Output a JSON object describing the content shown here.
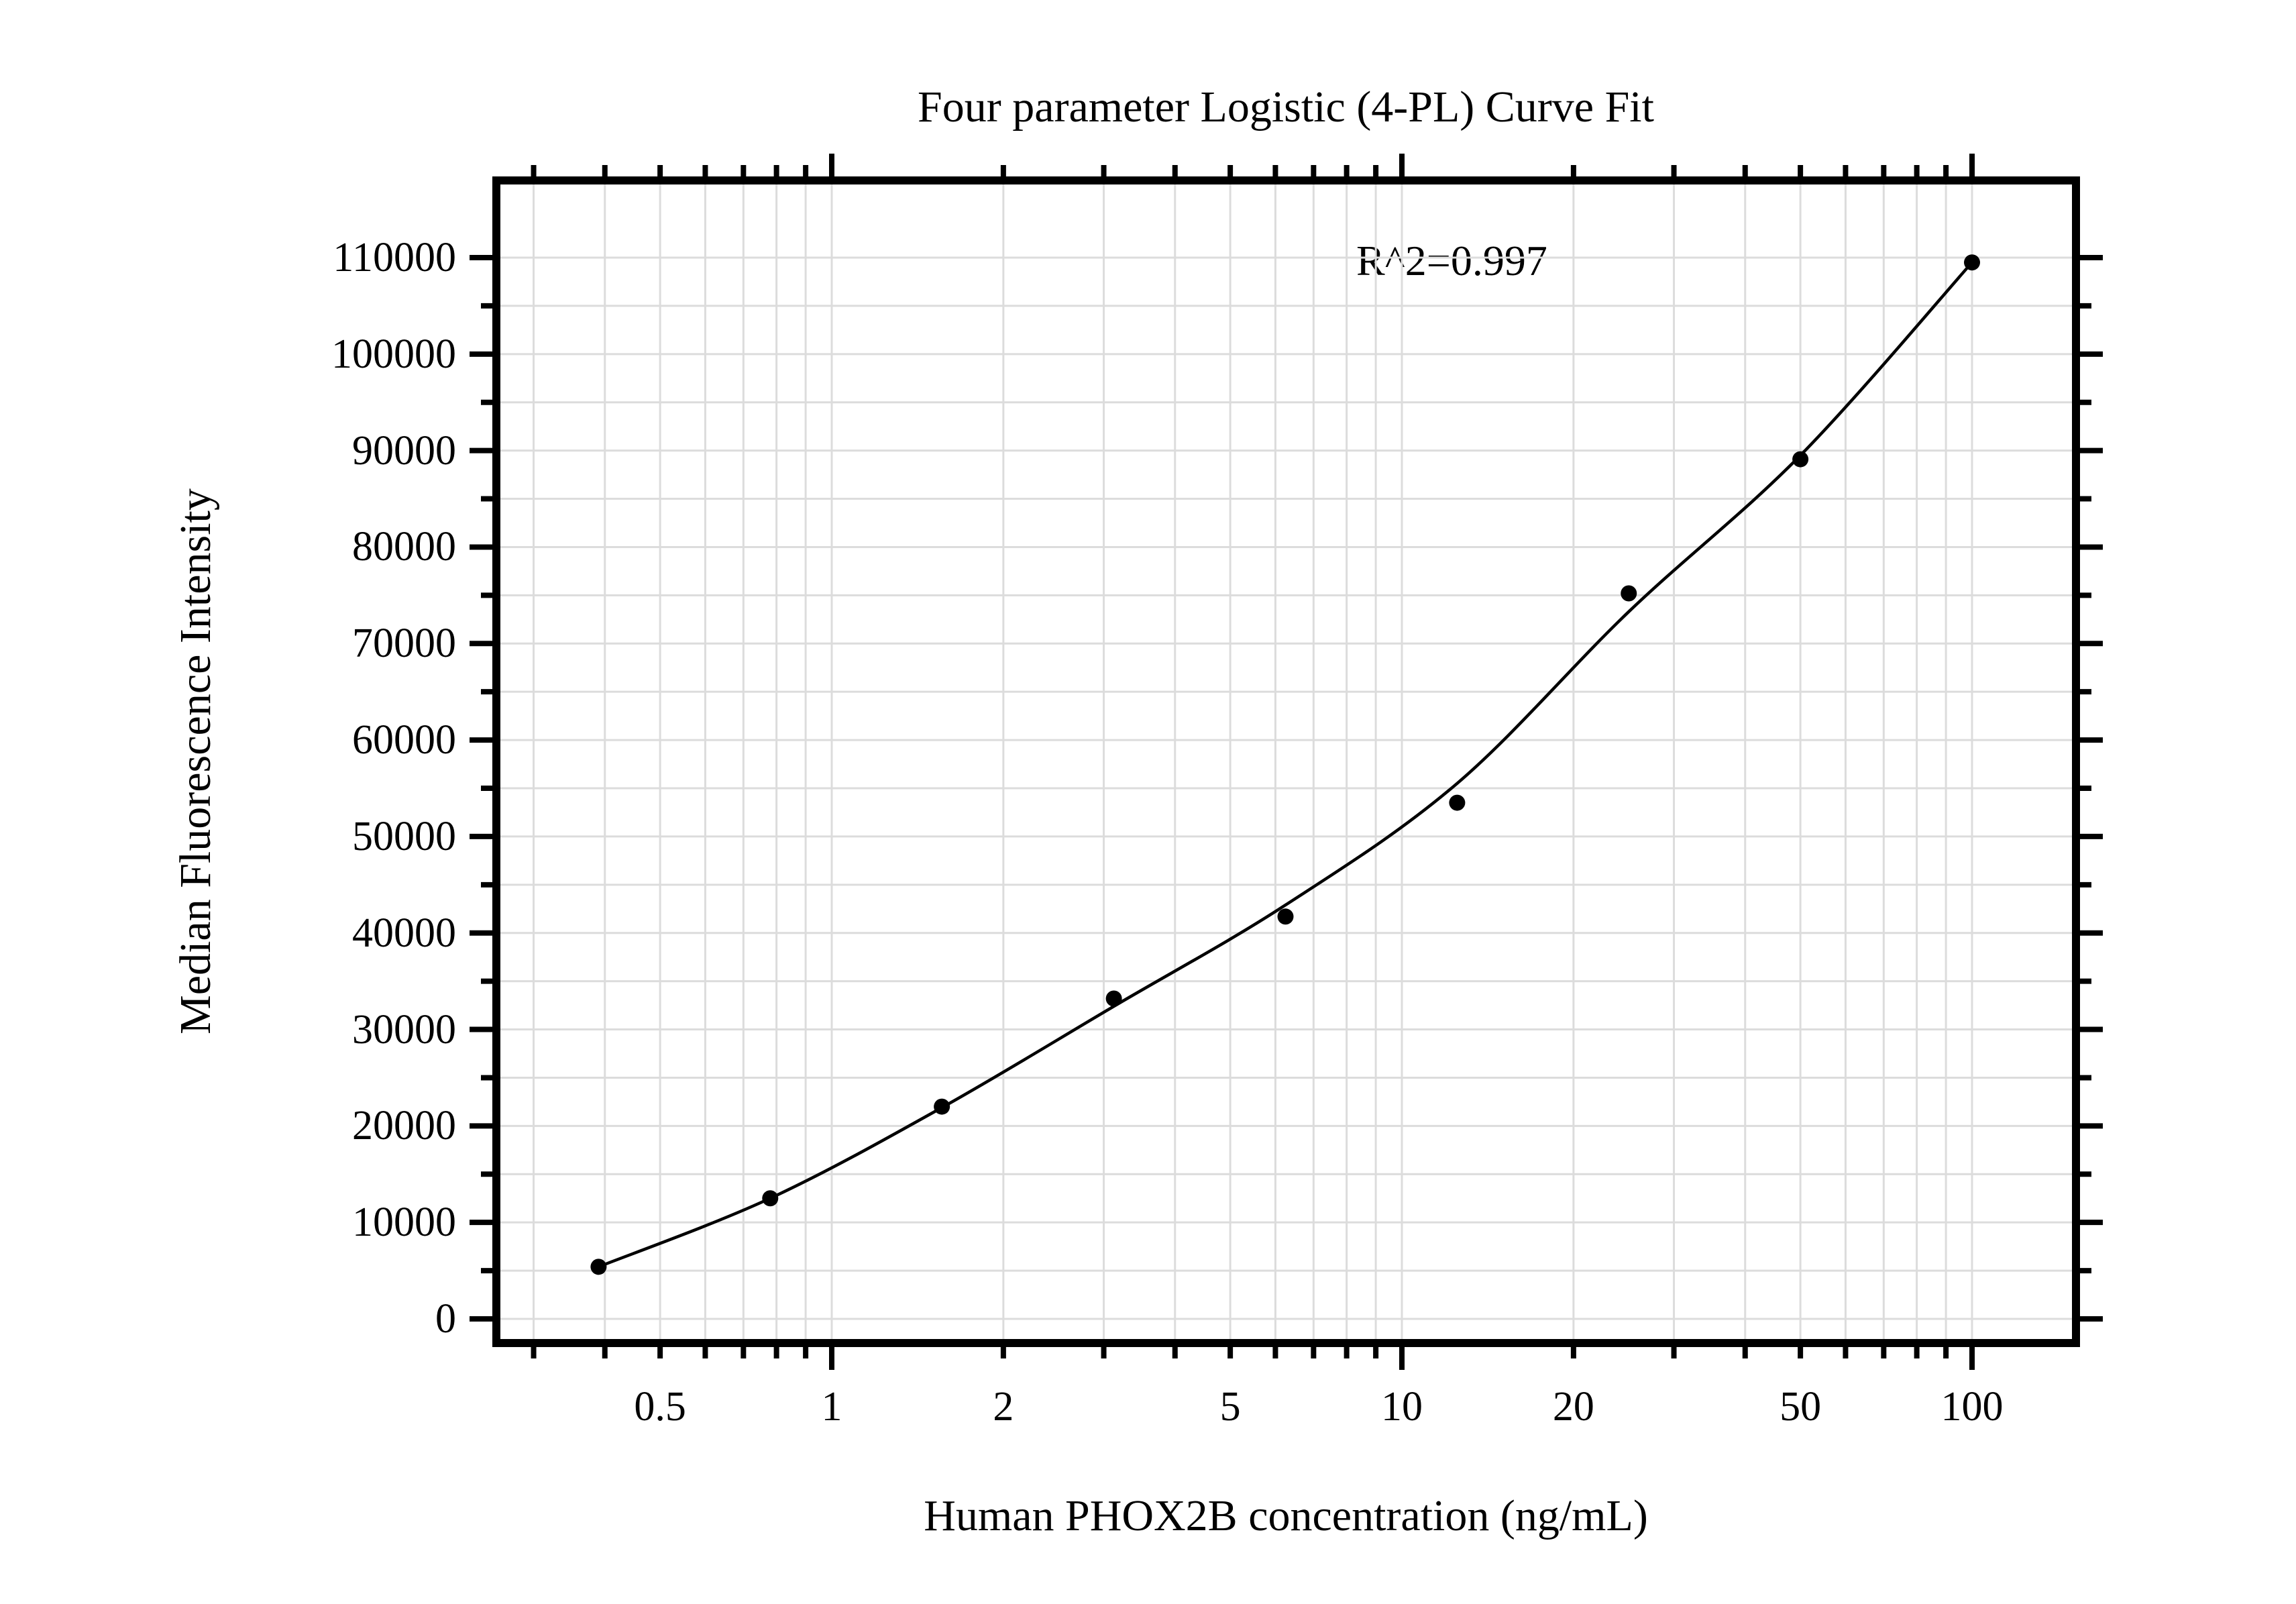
{
  "chart": {
    "title": "Four parameter Logistic (4-PL) Curve Fit",
    "annotation": "R^2=0.997",
    "xlabel": "Human PHOX2B concentration (ng/mL)",
    "ylabel": "Median Fluorescence Intensity"
  },
  "chart_data": {
    "type": "scatter",
    "title": "Four parameter Logistic (4-PL) Curve Fit",
    "xlabel": "Human PHOX2B concentration (ng/mL)",
    "ylabel": "Median Fluorescence Intensity",
    "annotation": "R^2=0.997",
    "x_scale": "log",
    "grid": true,
    "legend": "none",
    "marker": {
      "shape": "circle",
      "color": "#000000"
    },
    "line_color": "#000000",
    "grid_color": "#dcdcdc",
    "xlim": [
      0.26,
      152
    ],
    "ylim": [
      -2500,
      118000
    ],
    "x": [
      0.39,
      0.78,
      1.56,
      3.125,
      6.25,
      12.5,
      25,
      50,
      100
    ],
    "y": [
      5400,
      12500,
      22000,
      33200,
      41700,
      53500,
      75200,
      89100,
      109500
    ],
    "fit_curve": {
      "model": "4PL",
      "r_squared_label": "R^2=0.997",
      "x": [
        0.39,
        0.78,
        1.56,
        3.125,
        6.25,
        12.5,
        25,
        50,
        100
      ],
      "y": [
        5400,
        12500,
        21900,
        32400,
        42900,
        55500,
        73300,
        89500,
        109500
      ]
    },
    "x_tick_labels": [
      "0.5",
      "1",
      "2",
      "5",
      "10",
      "20",
      "50",
      "100"
    ],
    "x_major_ticks": [
      1,
      10,
      100
    ],
    "y_tick_labels": [
      "0",
      "10000",
      "20000",
      "30000",
      "40000",
      "50000",
      "60000",
      "70000",
      "80000",
      "90000",
      "100000",
      "110000"
    ],
    "y_tick_step_minor": 5000,
    "y_tick_step_major": 10000
  }
}
